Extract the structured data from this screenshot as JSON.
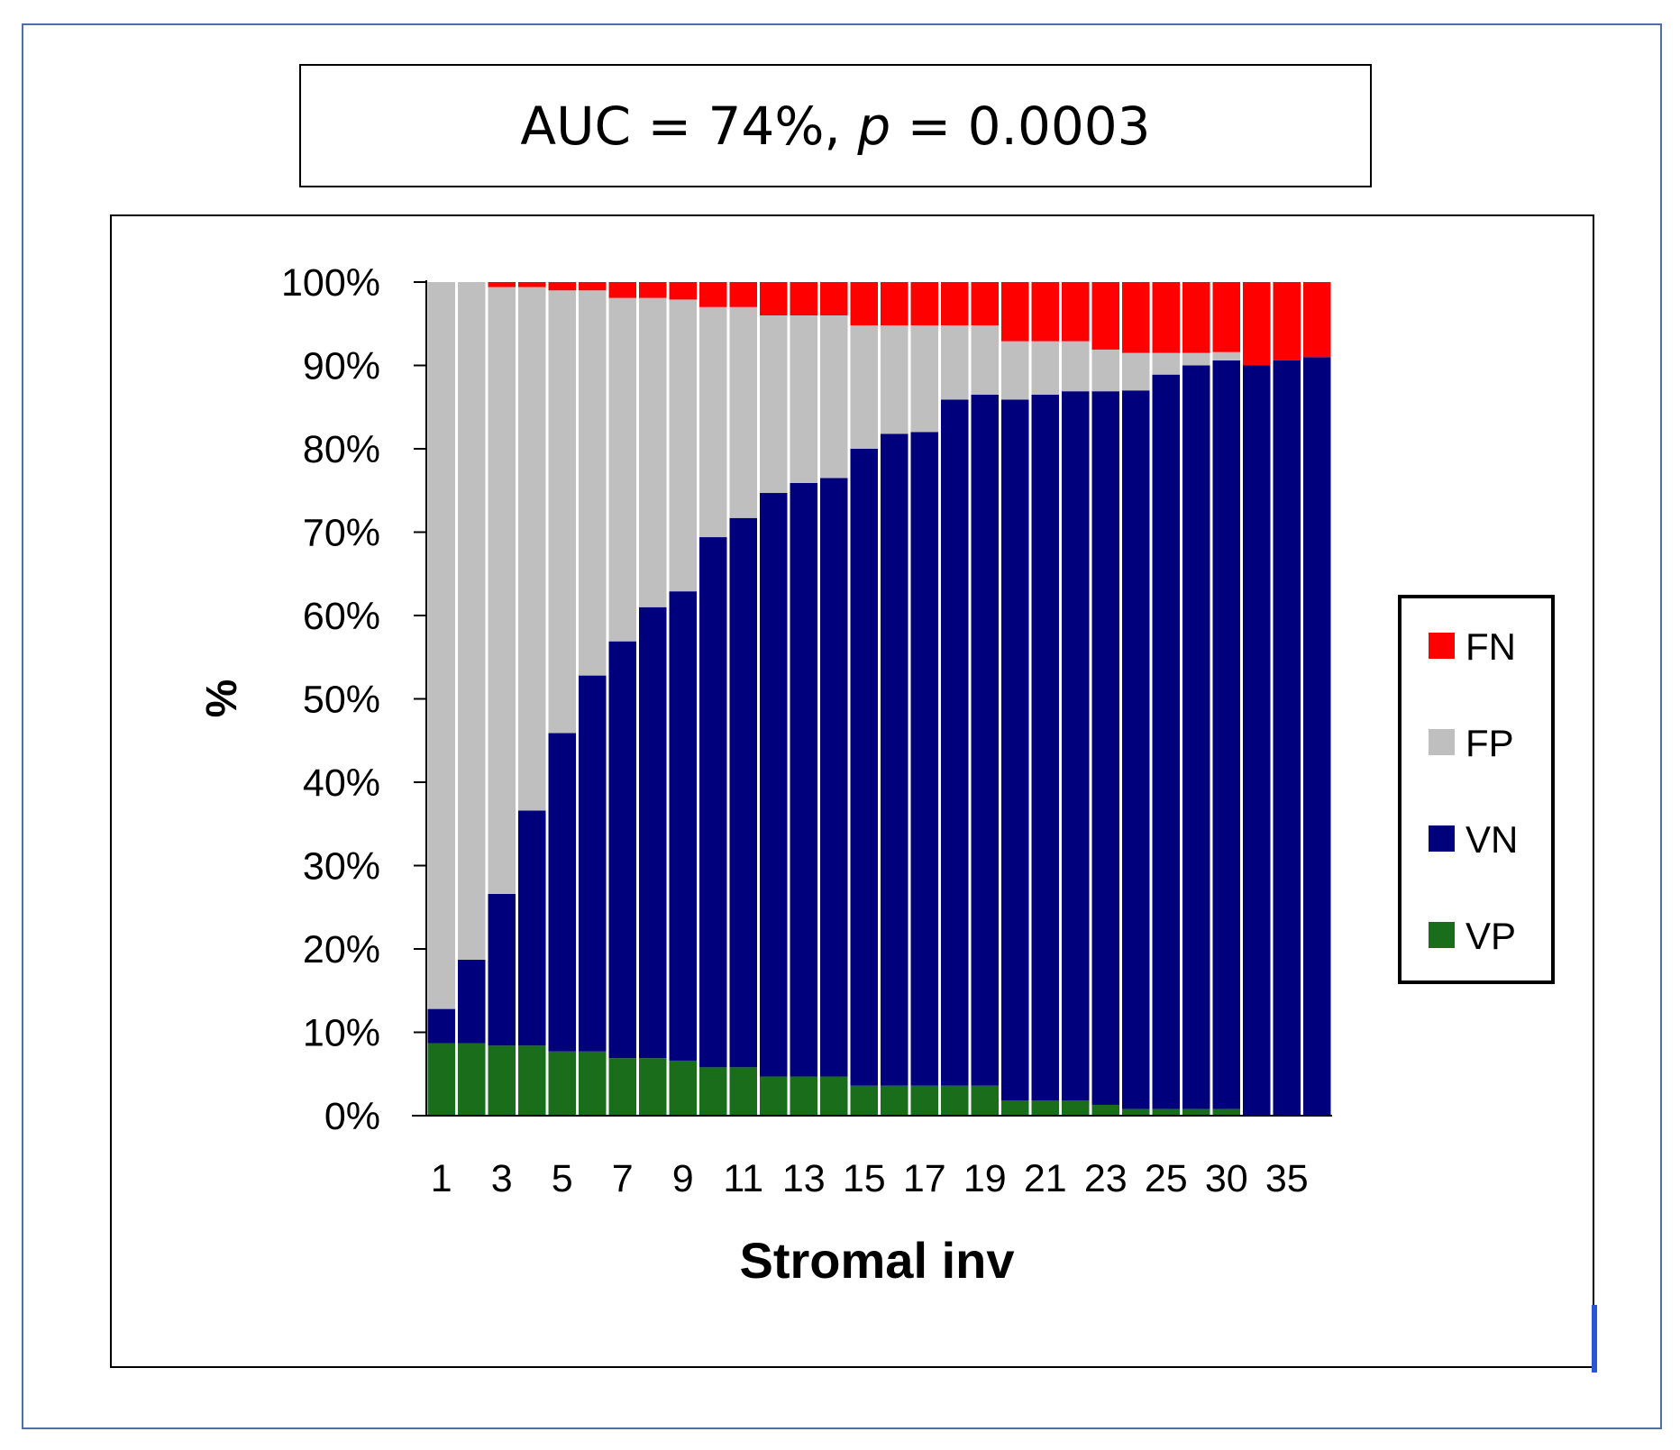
{
  "title": {
    "prefix": "AUC = 74%, ",
    "p_symbol": "p",
    "suffix": " = 0.0003"
  },
  "chart_data": {
    "type": "bar",
    "stacked": true,
    "normalized_percent": true,
    "xlabel": "Stromal inv",
    "ylabel": "%",
    "ylim": [
      0,
      100
    ],
    "y_ticks": [
      "0%",
      "10%",
      "20%",
      "30%",
      "40%",
      "50%",
      "60%",
      "70%",
      "80%",
      "90%",
      "100%"
    ],
    "x_tick_labels": [
      "1",
      "3",
      "5",
      "7",
      "9",
      "11",
      "13",
      "15",
      "17",
      "19",
      "21",
      "23",
      "25",
      "30",
      "35"
    ],
    "x_tick_label_bar_index": [
      0,
      2,
      4,
      6,
      8,
      10,
      12,
      14,
      16,
      18,
      20,
      22,
      24,
      26,
      28
    ],
    "legend_position": "right",
    "bar_count": 30,
    "series": [
      {
        "name": "VP",
        "color": "#1a6d1a",
        "values": [
          8.7,
          8.7,
          8.4,
          8.4,
          7.7,
          7.7,
          6.9,
          6.9,
          6.6,
          5.8,
          5.8,
          4.7,
          4.7,
          4.7,
          3.6,
          3.6,
          3.6,
          3.6,
          3.6,
          1.8,
          1.8,
          1.8,
          1.3,
          0.8,
          0.8,
          0.8,
          0.8,
          0.0,
          0.0,
          0.0
        ]
      },
      {
        "name": "VN",
        "color": "#00007c",
        "values": [
          4.1,
          10.0,
          18.2,
          28.2,
          38.2,
          45.1,
          50.0,
          54.1,
          56.3,
          63.6,
          65.9,
          70.0,
          71.2,
          71.8,
          76.4,
          78.2,
          78.4,
          82.3,
          82.9,
          84.1,
          84.7,
          85.1,
          85.6,
          86.2,
          88.1,
          89.2,
          89.8,
          90.0,
          90.6,
          91.0
        ]
      },
      {
        "name": "FP",
        "color": "#bfbfbf",
        "values": [
          87.2,
          81.3,
          72.8,
          62.8,
          53.1,
          46.2,
          41.2,
          37.1,
          35.0,
          27.6,
          25.3,
          21.3,
          20.1,
          19.5,
          14.8,
          13.0,
          12.8,
          8.9,
          8.3,
          7.0,
          6.4,
          6.0,
          5.0,
          4.5,
          2.6,
          1.5,
          1.0,
          0.0,
          0.0,
          0.0
        ]
      },
      {
        "name": "FN",
        "color": "#ff0000",
        "values": [
          0.0,
          0.0,
          0.6,
          0.6,
          1.0,
          1.0,
          1.9,
          1.9,
          2.1,
          3.0,
          3.0,
          4.0,
          4.0,
          4.0,
          5.2,
          5.2,
          5.2,
          5.2,
          5.2,
          7.1,
          7.1,
          7.1,
          8.1,
          8.5,
          8.5,
          8.5,
          8.4,
          10.0,
          9.4,
          9.0
        ]
      }
    ],
    "legend_order": [
      "FN",
      "FP",
      "VN",
      "VP"
    ]
  }
}
